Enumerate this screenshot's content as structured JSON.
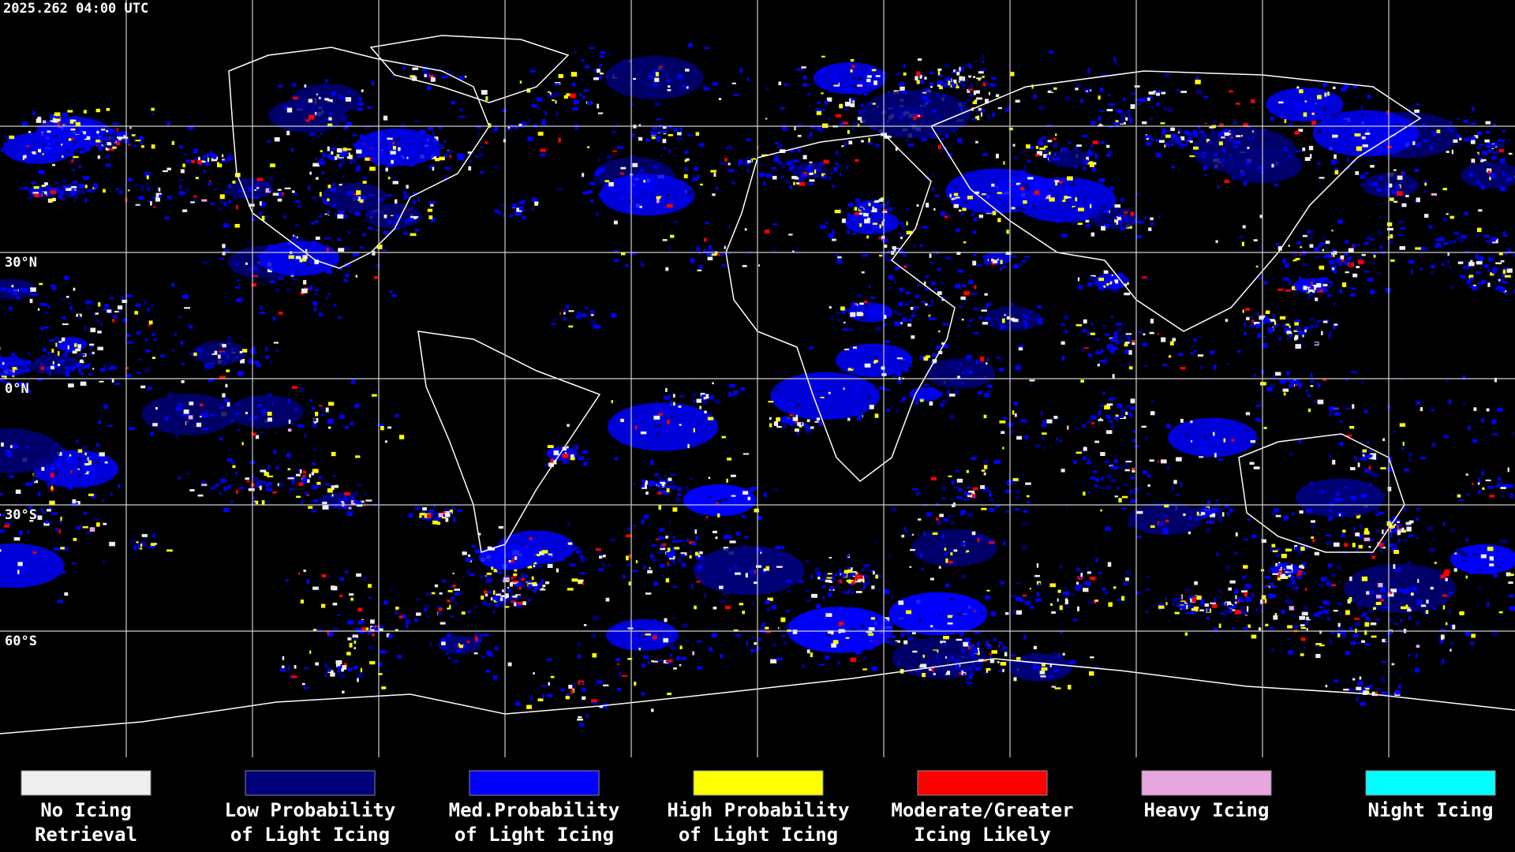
{
  "header": {
    "timestamp": "2025.262 04:00 UTC"
  },
  "map": {
    "latitude_labels": [
      "30°N",
      "0°N",
      "30°S",
      "60°S"
    ]
  },
  "legend": {
    "items": [
      {
        "color": "#eeeeee",
        "lines": [
          "No Icing",
          "Retrieval"
        ]
      },
      {
        "color": "#00007a",
        "lines": [
          "Low Probability",
          "of Light Icing"
        ]
      },
      {
        "color": "#0000ff",
        "lines": [
          "Med.Probability",
          "of Light Icing"
        ]
      },
      {
        "color": "#ffff00",
        "lines": [
          "High Probability",
          "of Light Icing"
        ]
      },
      {
        "color": "#ff0000",
        "lines": [
          "Moderate/Greater",
          "Icing Likely"
        ]
      },
      {
        "color": "#e8a6e0",
        "lines": [
          "Heavy Icing",
          ""
        ]
      },
      {
        "color": "#00ffff",
        "lines": [
          "Night Icing",
          ""
        ]
      }
    ]
  }
}
